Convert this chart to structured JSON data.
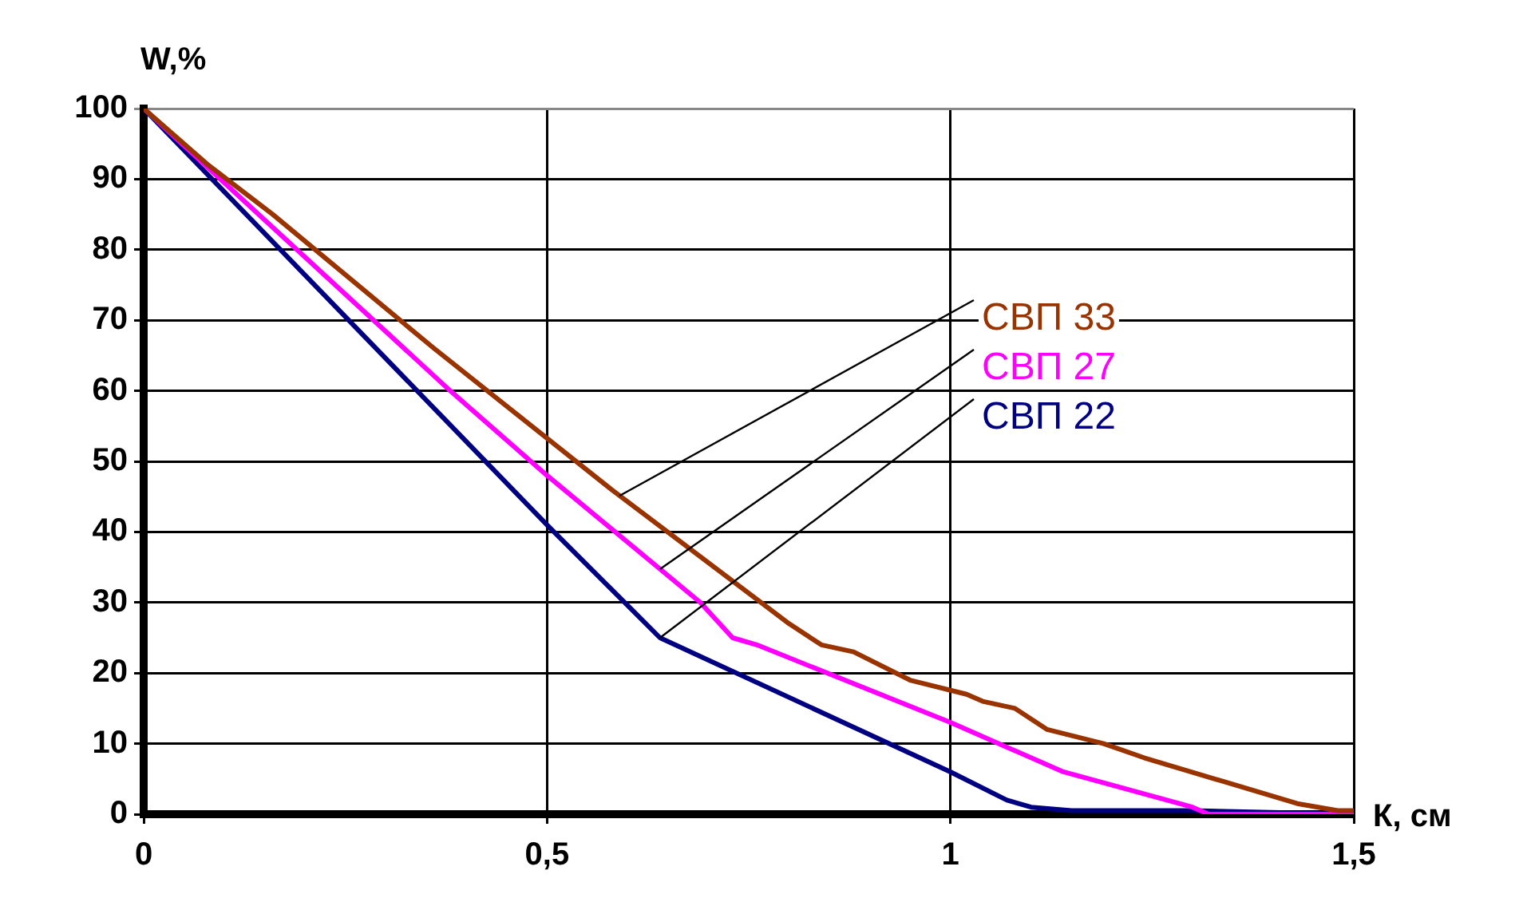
{
  "chart_data": {
    "type": "line",
    "xlabel": "К, см",
    "ylabel": "W,%",
    "xlim": [
      0,
      1.5
    ],
    "xticks": [
      0,
      {
        "value": 0.5,
        "label": "0,5"
      },
      1,
      {
        "value": 1.5,
        "label": "1,5"
      }
    ],
    "ylim": [
      0,
      100
    ],
    "yticks": [
      0,
      10,
      20,
      30,
      40,
      50,
      60,
      70,
      80,
      90,
      100
    ],
    "grid": true,
    "legend": false,
    "marker": "none",
    "line_style": "solid",
    "series": [
      {
        "name": "СВП 33",
        "color": "#993300",
        "x": [
          0,
          0.08,
          0.16,
          0.36,
          0.58,
          0.8,
          0.84,
          0.88,
          0.95,
          1.02,
          1.04,
          1.08,
          1.12,
          1.19,
          1.24,
          1.43,
          1.48,
          1.5
        ],
        "values": [
          100,
          92,
          85,
          66,
          46,
          27,
          24,
          23,
          19,
          17,
          16,
          15,
          12,
          10,
          8,
          1.5,
          0.5,
          0.5
        ]
      },
      {
        "name": "СВП 27",
        "color": "#ff00ff",
        "x": [
          0,
          0.38,
          0.5,
          0.69,
          0.73,
          0.76,
          1,
          1.14,
          1.3,
          1.32,
          1.5
        ],
        "values": [
          100,
          60,
          48,
          30,
          25,
          24,
          13,
          6,
          1,
          0,
          0
        ]
      },
      {
        "name": "СВП 22",
        "color": "#000080",
        "x": [
          0,
          0.5,
          0.64,
          1,
          1.07,
          1.1,
          1.15,
          1.3,
          1.5
        ],
        "values": [
          100,
          41,
          25,
          6,
          2,
          1,
          0.5,
          0.5,
          0
        ]
      }
    ]
  }
}
